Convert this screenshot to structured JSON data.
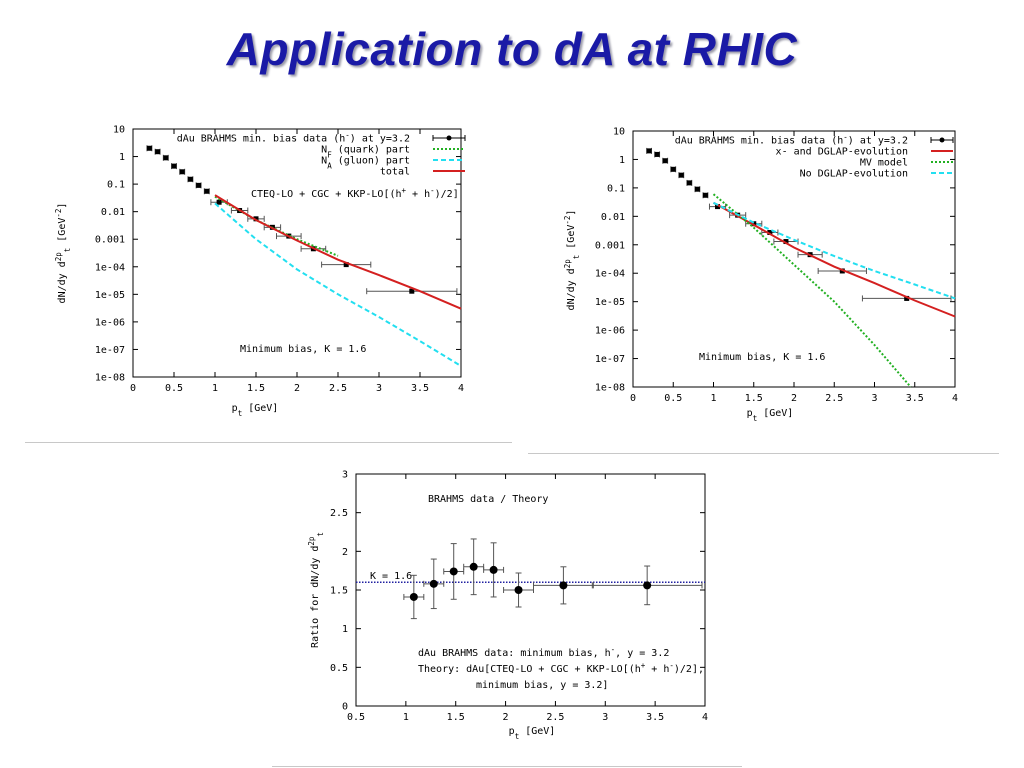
{
  "slide": {
    "title": "Application to dA at RHIC",
    "colors": {
      "title": "#1a1aa6",
      "red": "#d42020",
      "green": "#22b022",
      "cyan": "#22dff0",
      "blue": "#2020a0"
    }
  },
  "chart_data": [
    {
      "type": "line",
      "xlabel": "p_t [GeV]",
      "ylabel": "dN/dy d^2p_t [GeV^-2]",
      "xlim": [
        0,
        4
      ],
      "ylim": [
        1e-08,
        10
      ],
      "yscale": "log",
      "xticks": [
        {
          "v": 0,
          "l": "0"
        },
        {
          "v": 0.5,
          "l": "0.5"
        },
        {
          "v": 1,
          "l": "1"
        },
        {
          "v": 1.5,
          "l": "1.5"
        },
        {
          "v": 2,
          "l": "2"
        },
        {
          "v": 2.5,
          "l": "2.5"
        },
        {
          "v": 3,
          "l": "3"
        },
        {
          "v": 3.5,
          "l": "3.5"
        },
        {
          "v": 4,
          "l": "4"
        }
      ],
      "yticks": [
        {
          "v": 10,
          "l": "10"
        },
        {
          "v": 1,
          "l": "1"
        },
        {
          "v": 0.1,
          "l": "0.1"
        },
        {
          "v": 0.01,
          "l": "0.01"
        },
        {
          "v": 0.001,
          "l": "0.001"
        },
        {
          "v": 0.0001,
          "l": "1e-04"
        },
        {
          "v": 1e-05,
          "l": "1e-05"
        },
        {
          "v": 1e-06,
          "l": "1e-06"
        },
        {
          "v": 1e-07,
          "l": "1e-07"
        },
        {
          "v": 1e-08,
          "l": "1e-08"
        }
      ],
      "legend_position": "top-right",
      "legend": [
        {
          "label": "dAu BRAHMS min. bias data (h^-) at y=3.2",
          "style": "points",
          "color": "#000000"
        },
        {
          "label": "N_F (quark) part",
          "style": "dotted",
          "color": "#22b022"
        },
        {
          "label": "N_A (gluon) part",
          "style": "dashed",
          "color": "#22dff0"
        },
        {
          "label": "total",
          "style": "solid",
          "color": "#d42020"
        }
      ],
      "annotations": [
        "CTEQ-LO + CGC + KKP-LO[(h^+ + h^-)/2]",
        "Minimum bias,   K = 1.6"
      ],
      "series": [
        {
          "name": "dAu BRAHMS min. bias data (h^-) at y=3.2",
          "kind": "points",
          "x": [
            0.2,
            0.3,
            0.4,
            0.5,
            0.6,
            0.7,
            0.8,
            0.9,
            1.05,
            1.3,
            1.5,
            1.7,
            1.9,
            2.2,
            2.6,
            3.4
          ],
          "y": [
            2.0,
            1.5,
            0.9,
            0.45,
            0.28,
            0.15,
            0.09,
            0.055,
            0.022,
            0.011,
            0.0055,
            0.0027,
            0.0013,
            0.00045,
            0.00012,
            1.3e-05
          ],
          "xerr": [
            0.03,
            0.03,
            0.03,
            0.03,
            0.03,
            0.03,
            0.03,
            0.03,
            0.1,
            0.1,
            0.1,
            0.1,
            0.15,
            0.15,
            0.3,
            0.55
          ]
        },
        {
          "name": "N_F (quark) part",
          "kind": "line",
          "x": [
            1,
            1.5,
            2,
            2.5
          ],
          "y": [
            0.035,
            0.005,
            0.001,
            0.00025
          ]
        },
        {
          "name": "N_A (gluon) part",
          "kind": "line",
          "x": [
            1,
            1.5,
            2,
            2.5,
            3,
            3.5,
            4
          ],
          "y": [
            0.02,
            0.001,
            8e-05,
            1e-05,
            1.5e-06,
            2e-07,
            2.5e-08
          ]
        },
        {
          "name": "total",
          "kind": "line",
          "x": [
            1,
            1.5,
            2,
            2.5,
            3,
            3.5,
            4
          ],
          "y": [
            0.04,
            0.005,
            0.0009,
            0.00018,
            5e-05,
            1.3e-05,
            3e-06
          ]
        }
      ]
    },
    {
      "type": "line",
      "xlabel": "p_t [GeV]",
      "ylabel": "dN/dy d^2p_t [GeV^-2]",
      "xlim": [
        0,
        4
      ],
      "ylim": [
        1e-08,
        10
      ],
      "yscale": "log",
      "xticks": [
        {
          "v": 0,
          "l": "0"
        },
        {
          "v": 0.5,
          "l": "0.5"
        },
        {
          "v": 1,
          "l": "1"
        },
        {
          "v": 1.5,
          "l": "1.5"
        },
        {
          "v": 2,
          "l": "2"
        },
        {
          "v": 2.5,
          "l": "2.5"
        },
        {
          "v": 3,
          "l": "3"
        },
        {
          "v": 3.5,
          "l": "3.5"
        },
        {
          "v": 4,
          "l": "4"
        }
      ],
      "yticks": [
        {
          "v": 10,
          "l": "10"
        },
        {
          "v": 1,
          "l": "1"
        },
        {
          "v": 0.1,
          "l": "0.1"
        },
        {
          "v": 0.01,
          "l": "0.01"
        },
        {
          "v": 0.001,
          "l": "0.001"
        },
        {
          "v": 0.0001,
          "l": "1e-04"
        },
        {
          "v": 1e-05,
          "l": "1e-05"
        },
        {
          "v": 1e-06,
          "l": "1e-06"
        },
        {
          "v": 1e-07,
          "l": "1e-07"
        },
        {
          "v": 1e-08,
          "l": "1e-08"
        }
      ],
      "legend_position": "top-right",
      "legend": [
        {
          "label": "dAu BRAHMS min. bias data (h^-) at y=3.2",
          "style": "points",
          "color": "#000000"
        },
        {
          "label": "x- and DGLAP-evolution",
          "style": "solid",
          "color": "#d42020"
        },
        {
          "label": "MV model",
          "style": "dotted",
          "color": "#22b022"
        },
        {
          "label": "No DGLAP-evolution",
          "style": "dashed",
          "color": "#22dff0"
        }
      ],
      "annotations": [
        "Minimum bias,   K = 1.6"
      ],
      "series": [
        {
          "name": "dAu BRAHMS min. bias data (h^-) at y=3.2",
          "kind": "points",
          "x": [
            0.2,
            0.3,
            0.4,
            0.5,
            0.6,
            0.7,
            0.8,
            0.9,
            1.05,
            1.3,
            1.5,
            1.7,
            1.9,
            2.2,
            2.6,
            3.4
          ],
          "y": [
            2.0,
            1.5,
            0.9,
            0.45,
            0.28,
            0.15,
            0.09,
            0.055,
            0.022,
            0.011,
            0.0055,
            0.0027,
            0.0013,
            0.00045,
            0.00012,
            1.3e-05
          ],
          "xerr": [
            0.03,
            0.03,
            0.03,
            0.03,
            0.03,
            0.03,
            0.03,
            0.03,
            0.1,
            0.1,
            0.1,
            0.1,
            0.15,
            0.15,
            0.3,
            0.55
          ]
        },
        {
          "name": "x- and DGLAP-evolution",
          "kind": "line",
          "x": [
            1,
            1.5,
            2,
            2.5,
            3,
            3.5,
            4
          ],
          "y": [
            0.03,
            0.005,
            0.0008,
            0.00017,
            4.5e-05,
            1.1e-05,
            3e-06
          ]
        },
        {
          "name": "MV model",
          "kind": "line",
          "x": [
            1,
            1.5,
            2,
            2.5,
            3,
            3.45
          ],
          "y": [
            0.06,
            0.004,
            0.0002,
            1e-05,
            3e-07,
            1e-08
          ]
        },
        {
          "name": "No DGLAP-evolution",
          "kind": "line",
          "x": [
            1,
            1.5,
            2,
            2.5,
            3,
            3.5,
            4
          ],
          "y": [
            0.03,
            0.006,
            0.0015,
            0.0004,
            0.00012,
            4e-05,
            1.3e-05
          ]
        }
      ]
    },
    {
      "type": "scatter",
      "xlabel": "p_t [GeV]",
      "ylabel": "Ratio for dN/dy d^2p_t",
      "xlim": [
        0.5,
        4
      ],
      "ylim": [
        0,
        3
      ],
      "xticks": [
        {
          "v": 0.5,
          "l": "0.5"
        },
        {
          "v": 1,
          "l": "1"
        },
        {
          "v": 1.5,
          "l": "1.5"
        },
        {
          "v": 2,
          "l": "2"
        },
        {
          "v": 2.5,
          "l": "2.5"
        },
        {
          "v": 3,
          "l": "3"
        },
        {
          "v": 3.5,
          "l": "3.5"
        },
        {
          "v": 4,
          "l": "4"
        }
      ],
      "yticks": [
        {
          "v": 0,
          "l": "0"
        },
        {
          "v": 0.5,
          "l": "0.5"
        },
        {
          "v": 1,
          "l": "1"
        },
        {
          "v": 1.5,
          "l": "1.5"
        },
        {
          "v": 2,
          "l": "2"
        },
        {
          "v": 2.5,
          "l": "2.5"
        },
        {
          "v": 3,
          "l": "3"
        }
      ],
      "title": "BRAHMS data / Theory",
      "reference_line": {
        "y": 1.6,
        "label": "K = 1.6",
        "color": "#2020a0"
      },
      "annotations": [
        "dAu BRAHMS data: minimum bias, h^-, y = 3.2",
        "Theory: dAu[CTEQ-LO + CGC + KKP-LO[(h^+ + h^-)/2],",
        "minimum bias, y = 3.2]"
      ],
      "series": [
        {
          "name": "BRAHMS data / Theory",
          "kind": "points",
          "x": [
            1.08,
            1.28,
            1.48,
            1.68,
            1.88,
            2.13,
            2.58,
            3.42
          ],
          "y": [
            1.41,
            1.58,
            1.74,
            1.8,
            1.76,
            1.5,
            1.56,
            1.56
          ],
          "xerr": [
            0.1,
            0.1,
            0.1,
            0.1,
            0.1,
            0.15,
            0.3,
            0.55
          ],
          "yerr": [
            0.28,
            0.32,
            0.36,
            0.36,
            0.35,
            0.22,
            0.24,
            0.25
          ]
        }
      ]
    }
  ]
}
